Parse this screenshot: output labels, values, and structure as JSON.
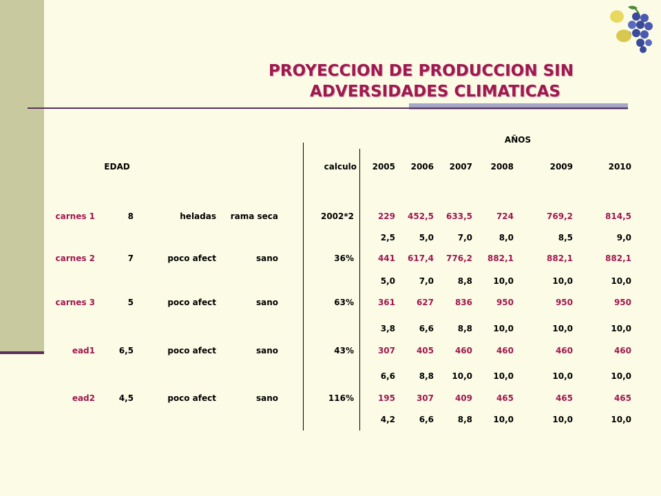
{
  "title": {
    "line1": "PROYECCION DE PRODUCCION SIN",
    "line2": "ADVERSIDADES CLIMATICAS"
  },
  "table": {
    "years_header": "AÑOS",
    "edad_header": "EDAD",
    "calculo_header": "calculo",
    "years": [
      "2005",
      "2006",
      "2007",
      "2008",
      "2009",
      "2010"
    ],
    "rows": [
      {
        "name": "carnes 1",
        "age": "8",
        "cond": "heladas",
        "state": "rama seca",
        "calc": "2002*2",
        "values": [
          "229",
          "452,5",
          "633,5",
          "724",
          "769,2",
          "814,5"
        ],
        "sub": [
          "2,5",
          "5,0",
          "7,0",
          "8,0",
          "8,5",
          "9,0"
        ]
      },
      {
        "name": "carnes 2",
        "age": "7",
        "cond": "poco afect",
        "state": "sano",
        "calc": "36%",
        "values": [
          "441",
          "617,4",
          "776,2",
          "882,1",
          "882,1",
          "882,1"
        ],
        "sub": [
          "5,0",
          "7,0",
          "8,8",
          "10,0",
          "10,0",
          "10,0"
        ]
      },
      {
        "name": "carnes 3",
        "age": "5",
        "cond": "poco afect",
        "state": "sano",
        "calc": "63%",
        "values": [
          "361",
          "627",
          "836",
          "950",
          "950",
          "950"
        ],
        "sub": [
          "3,8",
          "6,6",
          "8,8",
          "10,0",
          "10,0",
          "10,0"
        ]
      },
      {
        "name": "ead1",
        "age": "6,5",
        "cond": "poco afect",
        "state": "sano",
        "calc": "43%",
        "values": [
          "307",
          "405",
          "460",
          "460",
          "460",
          "460"
        ],
        "sub": [
          "6,6",
          "8,8",
          "10,0",
          "10,0",
          "10,0",
          "10,0"
        ]
      },
      {
        "name": "ead2",
        "age": "4,5",
        "cond": "poco afect",
        "state": "sano",
        "calc": "116%",
        "values": [
          "195",
          "307",
          "409",
          "465",
          "465",
          "465"
        ],
        "sub": [
          "4,2",
          "6,6",
          "8,8",
          "10,0",
          "10,0",
          "10,0"
        ]
      }
    ]
  },
  "colors": {
    "title": "#a01850",
    "row_label": "#a01850",
    "values": "#a01850",
    "background": "#fbfbe6",
    "side_bar": "#c9c9a0"
  }
}
